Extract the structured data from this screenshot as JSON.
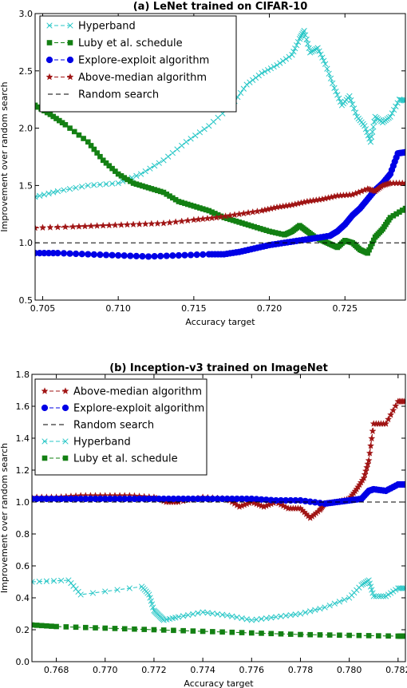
{
  "chart_data": [
    {
      "type": "line",
      "title": "(a) LeNet trained on CIFAR-10",
      "xlabel": "Accuracy target",
      "ylabel": "Improvement over random search",
      "xlim": [
        0.7045,
        0.729
      ],
      "ylim": [
        0.5,
        3.0
      ],
      "xticks": [
        "0.705",
        "0.710",
        "0.715",
        "0.720",
        "0.725"
      ],
      "yticks": [
        "0.5",
        "1.0",
        "1.5",
        "2.0",
        "2.5",
        "3.0"
      ],
      "grid": false,
      "legend_position": "top-left",
      "series": [
        {
          "name": "Hyperband",
          "color": "#2ac7c7",
          "marker": "x",
          "dash": "dash",
          "x": [
            0.7045,
            0.706,
            0.708,
            0.71,
            0.7115,
            0.713,
            0.7145,
            0.716,
            0.7175,
            0.7185,
            0.7195,
            0.7205,
            0.7215,
            0.722,
            0.7223,
            0.7227,
            0.7232,
            0.7237,
            0.7243,
            0.7248,
            0.7253,
            0.7258,
            0.7263,
            0.7267,
            0.727,
            0.7275,
            0.728,
            0.7286,
            0.729
          ],
          "y": [
            1.4,
            1.45,
            1.5,
            1.52,
            1.6,
            1.72,
            1.88,
            2.02,
            2.2,
            2.38,
            2.48,
            2.55,
            2.64,
            2.78,
            2.85,
            2.66,
            2.7,
            2.56,
            2.35,
            2.2,
            2.28,
            2.1,
            2.02,
            1.88,
            2.1,
            2.05,
            2.1,
            2.25,
            2.24
          ]
        },
        {
          "name": "Luby et al. schedule",
          "color": "#138013",
          "marker": "s",
          "dash": "dash",
          "x": [
            0.7045,
            0.7055,
            0.7065,
            0.708,
            0.709,
            0.71,
            0.711,
            0.712,
            0.713,
            0.714,
            0.715,
            0.716,
            0.717,
            0.718,
            0.719,
            0.72,
            0.721,
            0.7215,
            0.722,
            0.7225,
            0.723,
            0.7235,
            0.724,
            0.7245,
            0.725,
            0.7255,
            0.726,
            0.7265,
            0.727,
            0.7275,
            0.728,
            0.729
          ],
          "y": [
            2.2,
            2.12,
            2.03,
            1.88,
            1.72,
            1.6,
            1.52,
            1.48,
            1.44,
            1.36,
            1.32,
            1.28,
            1.22,
            1.18,
            1.14,
            1.1,
            1.07,
            1.1,
            1.15,
            1.1,
            1.05,
            1.02,
            0.99,
            0.96,
            1.02,
            1.0,
            0.94,
            0.91,
            1.05,
            1.12,
            1.22,
            1.3
          ]
        },
        {
          "name": "Explore-exploit algorithm",
          "color": "#0000e6",
          "marker": "o",
          "dash": "dash",
          "x": [
            0.7045,
            0.706,
            0.708,
            0.71,
            0.712,
            0.714,
            0.716,
            0.717,
            0.718,
            0.719,
            0.72,
            0.721,
            0.722,
            0.723,
            0.724,
            0.7245,
            0.725,
            0.7255,
            0.726,
            0.7265,
            0.727,
            0.7275,
            0.728,
            0.7285,
            0.729
          ],
          "y": [
            0.91,
            0.91,
            0.9,
            0.89,
            0.88,
            0.89,
            0.9,
            0.9,
            0.92,
            0.95,
            0.98,
            1.0,
            1.02,
            1.04,
            1.06,
            1.1,
            1.16,
            1.24,
            1.3,
            1.38,
            1.46,
            1.52,
            1.6,
            1.78,
            1.79
          ]
        },
        {
          "name": "Above-median algorithm",
          "color": "#a01414",
          "marker": "*",
          "dash": "dash",
          "x": [
            0.7045,
            0.707,
            0.709,
            0.711,
            0.713,
            0.715,
            0.7165,
            0.718,
            0.7195,
            0.7205,
            0.7215,
            0.7225,
            0.7235,
            0.7245,
            0.7255,
            0.7265,
            0.727,
            0.7275,
            0.728,
            0.729
          ],
          "y": [
            1.13,
            1.14,
            1.15,
            1.16,
            1.17,
            1.2,
            1.22,
            1.25,
            1.28,
            1.31,
            1.33,
            1.36,
            1.38,
            1.41,
            1.42,
            1.47,
            1.45,
            1.5,
            1.52,
            1.52
          ]
        },
        {
          "name": "Random search",
          "color": "#000000",
          "marker": "none",
          "dash": "dash",
          "x": [
            0.7045,
            0.729
          ],
          "y": [
            1.0,
            1.0
          ]
        }
      ]
    },
    {
      "type": "line",
      "title": "(b) Inception-v3 trained on ImageNet",
      "xlabel": "Accuracy target",
      "ylabel": "Improvement over random search",
      "xlim": [
        0.767,
        0.7823
      ],
      "ylim": [
        0.0,
        1.8
      ],
      "xticks": [
        "0.768",
        "0.770",
        "0.772",
        "0.774",
        "0.776",
        "0.778",
        "0.780",
        "0.782"
      ],
      "yticks": [
        "0.0",
        "0.2",
        "0.4",
        "0.6",
        "0.8",
        "1.0",
        "1.2",
        "1.4",
        "1.6",
        "1.8"
      ],
      "grid": false,
      "legend_position": "top-left",
      "series": [
        {
          "name": "Above-median algorithm",
          "color": "#a01414",
          "marker": "*",
          "dash": "dash",
          "x": [
            0.767,
            0.768,
            0.769,
            0.77,
            0.771,
            0.772,
            0.7725,
            0.773,
            0.774,
            0.775,
            0.7755,
            0.776,
            0.7765,
            0.777,
            0.7775,
            0.778,
            0.7784,
            0.7788,
            0.779,
            0.7795,
            0.78,
            0.7803,
            0.7806,
            0.7808,
            0.781,
            0.7815,
            0.782,
            0.7823
          ],
          "y": [
            1.03,
            1.03,
            1.04,
            1.04,
            1.04,
            1.03,
            1.0,
            1.0,
            1.03,
            1.02,
            0.97,
            1.0,
            0.97,
            1.0,
            0.96,
            0.96,
            0.9,
            0.95,
            0.99,
            1.0,
            1.02,
            1.08,
            1.15,
            1.26,
            1.49,
            1.49,
            1.63,
            1.63
          ]
        },
        {
          "name": "Explore-exploit algorithm",
          "color": "#0000e6",
          "marker": "o",
          "dash": "dash",
          "x": [
            0.767,
            0.768,
            0.769,
            0.77,
            0.771,
            0.772,
            0.773,
            0.774,
            0.775,
            0.776,
            0.777,
            0.778,
            0.779,
            0.7795,
            0.78,
            0.7805,
            0.7808,
            0.781,
            0.7815,
            0.782,
            0.7823
          ],
          "y": [
            1.02,
            1.02,
            1.02,
            1.02,
            1.02,
            1.02,
            1.02,
            1.02,
            1.02,
            1.02,
            1.01,
            1.01,
            0.99,
            1.0,
            1.01,
            1.02,
            1.07,
            1.08,
            1.07,
            1.11,
            1.11
          ]
        },
        {
          "name": "Random search",
          "color": "#000000",
          "marker": "none",
          "dash": "dash",
          "x": [
            0.767,
            0.7823
          ],
          "y": [
            1.0,
            1.0
          ]
        },
        {
          "name": "Hyperband",
          "color": "#2ac7c7",
          "marker": "x",
          "dash": "dash",
          "x": [
            0.767,
            0.7685,
            0.769,
            0.7715,
            0.7718,
            0.772,
            0.7722,
            0.7724,
            0.773,
            0.774,
            0.775,
            0.776,
            0.777,
            0.778,
            0.779,
            0.78,
            0.7805,
            0.7808,
            0.781,
            0.7815,
            0.782,
            0.7823
          ],
          "y": [
            0.5,
            0.51,
            0.42,
            0.47,
            0.42,
            0.32,
            0.29,
            0.26,
            0.28,
            0.31,
            0.29,
            0.26,
            0.28,
            0.3,
            0.34,
            0.4,
            0.48,
            0.51,
            0.41,
            0.41,
            0.46,
            0.46
          ]
        },
        {
          "name": "Luby et al. schedule",
          "color": "#138013",
          "marker": "s",
          "dash": "dash",
          "x": [
            0.767,
            0.768,
            0.77,
            0.772,
            0.774,
            0.776,
            0.778,
            0.78,
            0.782,
            0.7823
          ],
          "y": [
            0.23,
            0.22,
            0.21,
            0.2,
            0.19,
            0.18,
            0.17,
            0.165,
            0.16,
            0.16
          ]
        }
      ]
    }
  ]
}
